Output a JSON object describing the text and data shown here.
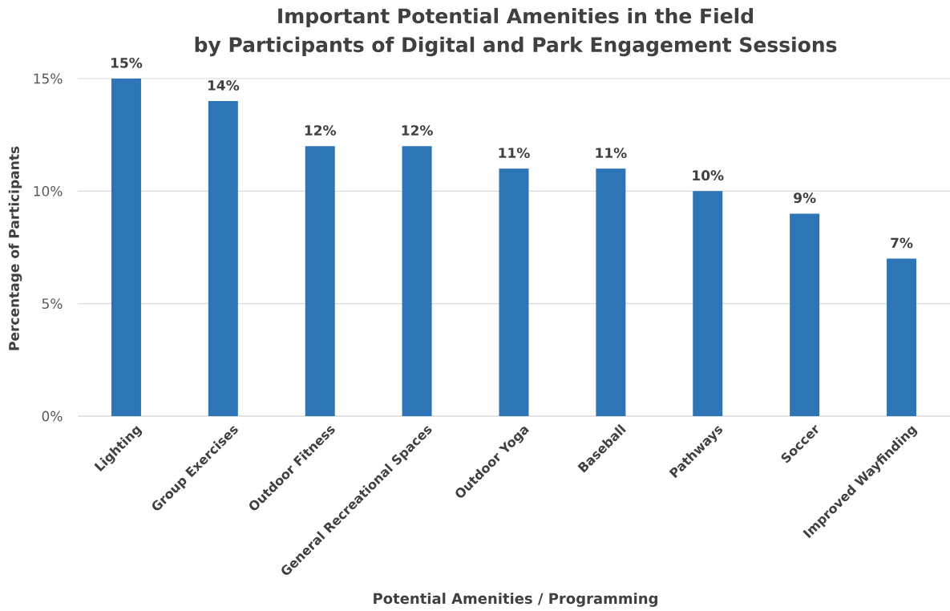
{
  "chart_data": {
    "type": "bar",
    "title": "Important Potential Amenities in the Field",
    "subtitle": "by Participants of Digital and Park Engagement Sessions",
    "xlabel": "Potential Amenities / Programming",
    "ylabel": "Percentage of Participants",
    "categories": [
      "Lighting",
      "Group Exercises",
      "Outdoor Fitness",
      "General Recreational Spaces",
      "Outdoor Yoga",
      "Baseball",
      "Pathways",
      "Soccer",
      "Improved Wayfinding"
    ],
    "values": [
      15,
      14,
      12,
      12,
      11,
      11,
      10,
      9,
      7
    ],
    "value_labels": [
      "15%",
      "14%",
      "12%",
      "12%",
      "11%",
      "11%",
      "10%",
      "9%",
      "7%"
    ],
    "color": "#2e75b6",
    "ylim": [
      0,
      15
    ],
    "yticks": [
      {
        "value": 0,
        "label": "0%"
      },
      {
        "value": 5,
        "label": "5%"
      },
      {
        "value": 10,
        "label": "10%"
      },
      {
        "value": 15,
        "label": "15%"
      }
    ],
    "grid": "y"
  }
}
